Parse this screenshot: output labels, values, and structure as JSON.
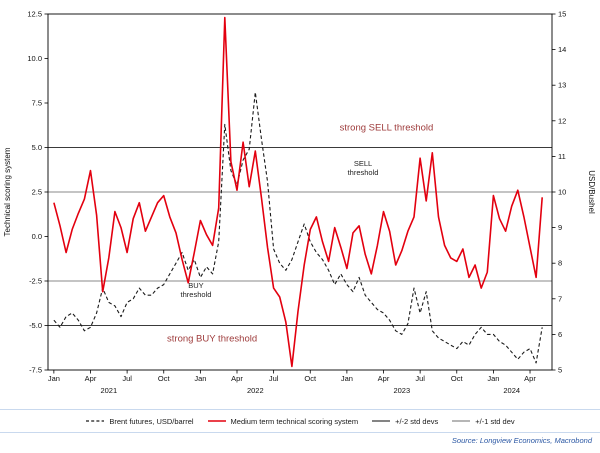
{
  "source": "Source: Longview Economics, Macrobond",
  "chart_data": {
    "type": "line",
    "title": "",
    "left_axis": {
      "label": "Technical scoring system",
      "min": -7.5,
      "max": 12.5,
      "ticks": [
        12.5,
        10.0,
        7.5,
        5.0,
        2.5,
        0.0,
        -2.5,
        -5.0,
        -7.5
      ]
    },
    "right_axis": {
      "label": "USD/Bushel",
      "min": 5,
      "max": 15,
      "ticks": [
        15,
        14,
        13,
        12,
        11,
        10,
        9,
        8,
        7,
        6,
        5
      ]
    },
    "x_axis": {
      "min": 2020.96,
      "max": 2024.4,
      "ticks": [
        {
          "t": 2021.0,
          "label": "Jan"
        },
        {
          "t": 2021.25,
          "label": "Apr"
        },
        {
          "t": 2021.5,
          "label": "Jul"
        },
        {
          "t": 2021.75,
          "label": "Oct"
        },
        {
          "t": 2022.0,
          "label": "Jan"
        },
        {
          "t": 2022.25,
          "label": "Apr"
        },
        {
          "t": 2022.5,
          "label": "Jul"
        },
        {
          "t": 2022.75,
          "label": "Oct"
        },
        {
          "t": 2023.0,
          "label": "Jan"
        },
        {
          "t": 2023.25,
          "label": "Apr"
        },
        {
          "t": 2023.5,
          "label": "Jul"
        },
        {
          "t": 2023.75,
          "label": "Oct"
        },
        {
          "t": 2024.0,
          "label": "Jan"
        },
        {
          "t": 2024.25,
          "label": "Apr"
        }
      ],
      "years": [
        {
          "t": 2021.375,
          "label": "2021"
        },
        {
          "t": 2022.375,
          "label": "2022"
        },
        {
          "t": 2023.375,
          "label": "2023"
        },
        {
          "t": 2024.125,
          "label": "2024"
        }
      ]
    },
    "thresholds": [
      {
        "value": 5.0,
        "color": "#3a3a3a"
      },
      {
        "value": 2.5,
        "color": "#8a8a8a"
      },
      {
        "value": -2.5,
        "color": "#8a8a8a"
      },
      {
        "value": -5.0,
        "color": "#3a3a3a"
      }
    ],
    "annotations": [
      {
        "lines": [
          "strong SELL threshold"
        ],
        "t": 2023.27,
        "v": 5.95,
        "color": "#9e3b3b",
        "size": 9.5
      },
      {
        "lines": [
          "SELL",
          "threshold"
        ],
        "t": 2023.11,
        "v": 3.95,
        "color": "#222222",
        "size": 7.5
      },
      {
        "lines": [
          "BUY",
          "threshold"
        ],
        "t": 2021.97,
        "v": -2.9,
        "color": "#222222",
        "size": 7.5
      },
      {
        "lines": [
          "strong BUY threshold"
        ],
        "t": 2022.08,
        "v": -5.9,
        "color": "#9e3b3b",
        "size": 9.5
      }
    ],
    "series": [
      {
        "name": "Brent futures, USD/barrel",
        "axis": "right",
        "color": "#1a1a1a",
        "width": 1.1,
        "dash": "3.5 2.5",
        "x_start": 2021.0,
        "x_step": 0.0416667,
        "values": [
          6.4,
          6.2,
          6.5,
          6.6,
          6.4,
          6.1,
          6.2,
          6.6,
          7.3,
          6.9,
          6.8,
          6.5,
          6.9,
          7.0,
          7.3,
          7.1,
          7.1,
          7.3,
          7.4,
          7.7,
          8.0,
          8.3,
          7.8,
          8.1,
          7.6,
          7.9,
          7.7,
          8.6,
          11.9,
          10.6,
          10.2,
          10.9,
          11.2,
          12.8,
          11.5,
          10.3,
          8.4,
          8.0,
          7.8,
          8.1,
          8.6,
          9.1,
          8.6,
          8.3,
          8.1,
          7.8,
          7.4,
          7.7,
          7.4,
          7.2,
          7.6,
          7.1,
          6.9,
          6.7,
          6.6,
          6.4,
          6.1,
          6.0,
          6.3,
          7.3,
          6.6,
          7.2,
          6.1,
          5.9,
          5.8,
          5.7,
          5.6,
          5.8,
          5.7,
          6.0,
          6.2,
          6.0,
          6.0,
          5.8,
          5.7,
          5.5,
          5.3,
          5.5,
          5.6,
          5.2,
          6.2
        ]
      },
      {
        "name": "Medium term technical scoring system",
        "axis": "left",
        "color": "#e3000f",
        "width": 1.6,
        "dash": null,
        "x_start": 2021.0,
        "x_step": 0.0416667,
        "values": [
          1.9,
          0.6,
          -0.9,
          0.4,
          1.3,
          2.1,
          3.7,
          1.2,
          -3.1,
          -1.2,
          1.4,
          0.5,
          -0.9,
          1.0,
          1.9,
          0.3,
          1.1,
          1.9,
          2.3,
          1.1,
          0.2,
          -1.3,
          -2.6,
          -0.9,
          0.9,
          0.1,
          -0.5,
          1.6,
          12.3,
          4.2,
          2.6,
          5.3,
          2.8,
          4.8,
          2.2,
          -0.6,
          -2.9,
          -3.4,
          -4.8,
          -7.3,
          -4.2,
          -1.6,
          0.4,
          1.1,
          -0.3,
          -1.4,
          0.5,
          -0.6,
          -1.8,
          0.2,
          0.6,
          -1.0,
          -2.1,
          -0.5,
          1.4,
          0.3,
          -1.6,
          -0.8,
          0.3,
          1.1,
          4.4,
          2.0,
          4.7,
          1.1,
          -0.5,
          -1.2,
          -1.4,
          -0.7,
          -2.3,
          -1.6,
          -2.9,
          -2.0,
          2.3,
          1.0,
          0.3,
          1.7,
          2.6,
          1.1,
          -0.6,
          -2.3,
          2.2
        ]
      }
    ],
    "legend": [
      {
        "label": "Brent futures, USD/barrel",
        "color": "#1a1a1a",
        "width": 1.2,
        "dash": true
      },
      {
        "label": "Medium term technical scoring system",
        "color": "#e3000f",
        "width": 1.6,
        "dash": false
      },
      {
        "label": "+/-2 std devs",
        "color": "#3a3a3a",
        "width": 1.2,
        "dash": false
      },
      {
        "label": "+/-1 std dev",
        "color": "#8a8a8a",
        "width": 1.2,
        "dash": false
      }
    ]
  }
}
